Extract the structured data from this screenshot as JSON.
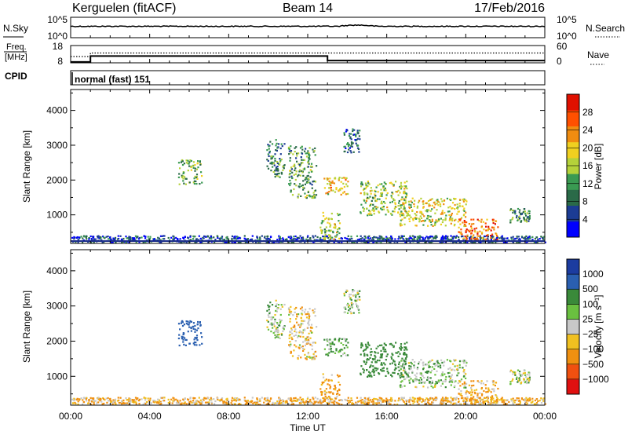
{
  "header": {
    "station": "Kerguelen (fitACF)",
    "beam": "Beam 14",
    "date": "17/Feb/2016"
  },
  "panels": {
    "nsky": {
      "left_label": "N.Sky",
      "right_label": "N.Search",
      "left_ticks": [
        "10^5",
        "10^0"
      ],
      "right_ticks": [
        "10^5",
        "10^0"
      ]
    },
    "freq": {
      "left_label_1": "Freq.",
      "left_label_2": "[MHz]",
      "right_label": "Nave",
      "left_ticks": [
        "18",
        "8"
      ],
      "right_ticks": [
        "60",
        "0"
      ]
    },
    "cpid": {
      "label": "CPID",
      "program": "normal (fast) 151"
    },
    "power": {
      "ylabel": "Slant Range [km]",
      "yticks": [
        "4000",
        "3000",
        "2000",
        "1000"
      ],
      "colorbar_label": "Power [dB]",
      "colorbar_ticks": [
        "28",
        "24",
        "20",
        "16",
        "12",
        "8",
        "4"
      ],
      "colors": [
        "#0000ff",
        "#1c3c94",
        "#2a6a48",
        "#3a9a52",
        "#b5d23a",
        "#f0d020",
        "#f08c10",
        "#ff5000",
        "#e01000"
      ]
    },
    "velocity": {
      "ylabel": "Slant Range [km]",
      "yticks": [
        "4000",
        "3000",
        "2000",
        "1000"
      ],
      "colorbar_label": "Velocity [m s⁻¹]",
      "colorbar_ticks": [
        "1000",
        "500",
        "100",
        "25",
        "−25",
        "−100",
        "−500",
        "−1000"
      ],
      "colors": [
        "#1c3ca0",
        "#2a5fb0",
        "#3a8a3a",
        "#6ac040",
        "#c8c8c8",
        "#f0c020",
        "#f09010",
        "#f05010",
        "#e01010"
      ]
    }
  },
  "xaxis": {
    "ticks": [
      "00:00",
      "04:00",
      "08:00",
      "12:00",
      "16:00",
      "20:00",
      "00:00"
    ],
    "label": "Time UT"
  },
  "chart_data": {
    "type": "heatmap",
    "title": "Kerguelen (fitACF) Beam 14 17/Feb/2016",
    "xlabel": "Time UT",
    "ylabel": "Slant Range [km]",
    "xlim": [
      0,
      24
    ],
    "ylim": [
      180,
      4600
    ],
    "power_scale_db": [
      0,
      32
    ],
    "velocity_scale_ms": [
      -1000,
      1000
    ],
    "frequency_mhz": {
      "times": [
        0,
        1.0,
        1.0,
        13.0,
        13.0,
        24
      ],
      "values": [
        8.6,
        8.6,
        12.8,
        12.8,
        9.6,
        9.6
      ]
    },
    "scatter_regions": [
      {
        "t0": 0.0,
        "t1": 24.0,
        "r0": 220,
        "r1": 420,
        "power_db": 6,
        "velocity": -60
      },
      {
        "t0": 5.4,
        "t1": 6.6,
        "r0": 1900,
        "r1": 2600,
        "power_db": 14,
        "velocity": 400
      },
      {
        "t0": 9.9,
        "t1": 10.8,
        "r0": 2100,
        "r1": 3200,
        "power_db": 10,
        "velocity": 20
      },
      {
        "t0": 11.0,
        "t1": 12.4,
        "r0": 1500,
        "r1": 3000,
        "power_db": 12,
        "velocity": -30
      },
      {
        "t0": 12.8,
        "t1": 14.0,
        "r0": 1600,
        "r1": 2100,
        "power_db": 20,
        "velocity": 80
      },
      {
        "t0": 12.6,
        "t1": 13.6,
        "r0": 300,
        "r1": 1100,
        "power_db": 16,
        "velocity": -80
      },
      {
        "t0": 13.8,
        "t1": 14.6,
        "r0": 2800,
        "r1": 3500,
        "power_db": 8,
        "velocity": 20
      },
      {
        "t0": 14.6,
        "t1": 17.0,
        "r0": 1000,
        "r1": 2000,
        "power_db": 16,
        "velocity": 150
      },
      {
        "t0": 16.6,
        "t1": 20.0,
        "r0": 700,
        "r1": 1500,
        "power_db": 18,
        "velocity": 30
      },
      {
        "t0": 19.6,
        "t1": 21.6,
        "r0": 300,
        "r1": 900,
        "power_db": 24,
        "velocity": -60
      },
      {
        "t0": 22.2,
        "t1": 23.2,
        "r0": 800,
        "r1": 1200,
        "power_db": 12,
        "velocity": 10
      }
    ]
  }
}
